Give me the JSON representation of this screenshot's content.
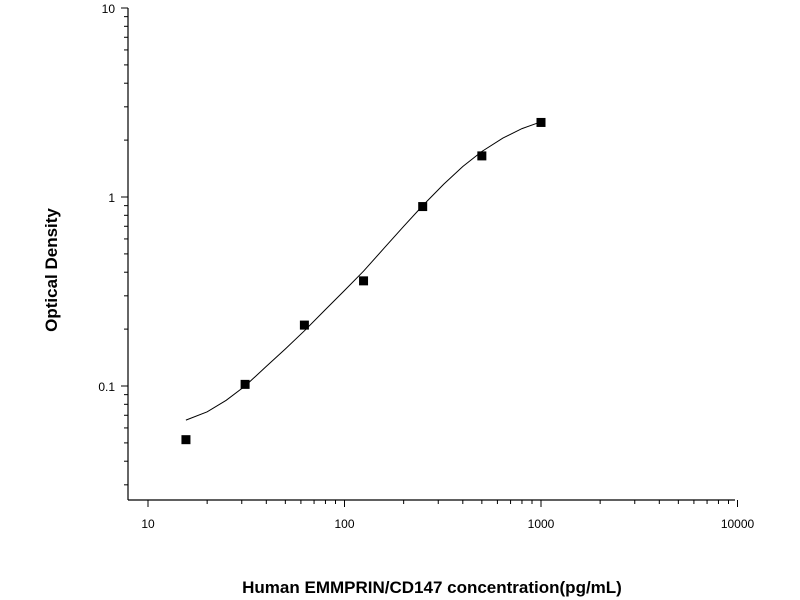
{
  "chart_data": {
    "type": "scatter",
    "xlabel": "Human EMMPRIN/CD147 concentration(pg/mL)",
    "ylabel": "Optical Density",
    "xscale": "log",
    "yscale": "log",
    "xlim": [
      10,
      10000
    ],
    "ylim": [
      0.03,
      10
    ],
    "x_ticks": [
      10,
      100,
      1000,
      10000
    ],
    "x_tick_labels": [
      "10",
      "100",
      "1000",
      "10000"
    ],
    "y_ticks": [
      0.1,
      1,
      10
    ],
    "y_tick_labels": [
      "0.1",
      "1",
      "10"
    ],
    "grid": false,
    "legend": "none",
    "series": [
      {
        "marker": "square",
        "color": "#000000",
        "x": [
          15.6,
          31.2,
          62.5,
          125,
          250,
          500,
          1000
        ],
        "y": [
          0.052,
          0.102,
          0.21,
          0.36,
          0.89,
          1.65,
          2.48
        ]
      }
    ],
    "fit_curve": {
      "color": "#000000",
      "x": [
        15.6,
        20,
        25,
        31.2,
        40,
        50,
        62.5,
        80,
        100,
        125,
        160,
        200,
        250,
        320,
        400,
        500,
        640,
        800,
        1000
      ],
      "y": [
        0.066,
        0.073,
        0.084,
        0.1,
        0.127,
        0.157,
        0.196,
        0.254,
        0.32,
        0.405,
        0.54,
        0.7,
        0.9,
        1.17,
        1.45,
        1.74,
        2.05,
        2.3,
        2.5
      ]
    }
  }
}
